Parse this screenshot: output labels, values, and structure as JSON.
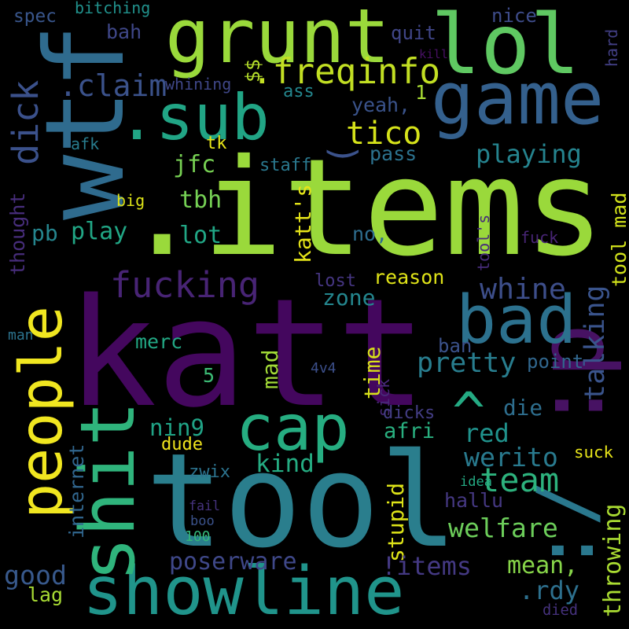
{
  "words": [
    {
      "text": ".items",
      "color": "#9ad93b"
    },
    {
      "text": "katt",
      "color": "#44075e"
    },
    {
      "text": "tool",
      "color": "#2a7e8d"
    },
    {
      "text": "showline",
      "color": "#20948b"
    },
    {
      "text": "grunt",
      "color": "#9ad93b"
    },
    {
      "text": "lol",
      "color": "#5fc862"
    },
    {
      "text": "wtf",
      "color": "#2f6b8e"
    },
    {
      "text": "game",
      "color": "#34608d"
    },
    {
      "text": ":/",
      "color": "#2a788e"
    },
    {
      "text": ":p",
      "color": "#471263"
    },
    {
      "text": "people",
      "color": "#f0e620"
    },
    {
      "text": "cap",
      "color": "#26ad81"
    },
    {
      "text": "bad",
      "color": "#2c718e"
    },
    {
      "text": "shit",
      "color": "#2fb47c"
    },
    {
      "text": ".sub",
      "color": "#21a585"
    },
    {
      "text": "(",
      "color": "#3b528b"
    },
    {
      "text": "^",
      "color": "#24aa83"
    },
    {
      "text": "dick",
      "color": "#3b518b"
    },
    {
      "text": ".freqinfo",
      "color": "#c2df23"
    },
    {
      "text": ".claim",
      "color": "#3b528b"
    },
    {
      "text": "fucking",
      "color": "#482475"
    },
    {
      "text": "tico",
      "color": "#d5e21a"
    },
    {
      "text": "playing",
      "color": "#25838e"
    },
    {
      "text": "team",
      "color": "#2db27d"
    },
    {
      "text": "welfare",
      "color": "#6ccd5a"
    },
    {
      "text": "tool mad",
      "color": "#d2e21b"
    },
    {
      "text": "katt's",
      "color": "#e5e419"
    },
    {
      "text": "talking",
      "color": "#3a548c"
    },
    {
      "text": "throwing",
      "color": "#aadc32"
    },
    {
      "text": "whine",
      "color": "#3d4e8a"
    },
    {
      "text": "pretty",
      "color": "#287d8e"
    },
    {
      "text": "nin9",
      "color": "#20a386"
    },
    {
      "text": "kind",
      "color": "#25ac82"
    },
    {
      "text": "werito",
      "color": "#297a8e"
    },
    {
      "text": "afri",
      "color": "#29af7f"
    },
    {
      "text": "red",
      "color": "#20928c"
    },
    {
      "text": "die",
      "color": "#2e6e8e"
    },
    {
      "text": "hallu",
      "color": "#453882"
    },
    {
      "text": "stupid",
      "color": "#dde318"
    },
    {
      "text": "internet",
      "color": "#31668e"
    },
    {
      "text": "mean,",
      "color": "#87d549"
    },
    {
      "text": "poserware",
      "color": "#3f4889"
    },
    {
      "text": "!items",
      "color": "#443983"
    },
    {
      "text": ".rdy",
      "color": "#2d708e"
    },
    {
      "text": "good",
      "color": "#38598c"
    },
    {
      "text": "lag",
      "color": "#a8db34"
    },
    {
      "text": "died",
      "color": "#46327e"
    },
    {
      "text": "zone",
      "color": "#24868e"
    },
    {
      "text": "reason",
      "color": "#dfe318"
    },
    {
      "text": "lost",
      "color": "#453581"
    },
    {
      "text": "time",
      "color": "#d8e219"
    },
    {
      "text": "mad",
      "color": "#a2da37"
    },
    {
      "text": "jfc",
      "color": "#77d153"
    },
    {
      "text": "tbh",
      "color": "#75d054"
    },
    {
      "text": "lot",
      "color": "#21a685"
    },
    {
      "text": "play",
      "color": "#21a685"
    },
    {
      "text": "pb",
      "color": "#25858e"
    },
    {
      "text": "no,",
      "color": "#2e6d8e"
    },
    {
      "text": "merc",
      "color": "#22a884"
    },
    {
      "text": "5",
      "color": "#3cbb75"
    },
    {
      "text": "ban",
      "color": "#3b528b"
    },
    {
      "text": "point",
      "color": "#31678e"
    },
    {
      "text": "sick",
      "color": "#482979"
    },
    {
      "text": "suck",
      "color": "#e7e419"
    },
    {
      "text": "dude",
      "color": "#f1e51d"
    },
    {
      "text": "zwix",
      "color": "#2c738e"
    },
    {
      "text": "dicks",
      "color": "#433d84"
    },
    {
      "text": "tk",
      "color": "#e7e419"
    },
    {
      "text": "afk",
      "color": "#287c8e"
    },
    {
      "text": "staff",
      "color": "#2a788e"
    },
    {
      "text": "pass",
      "color": "#2c728e"
    },
    {
      "text": "yeah,",
      "color": "#3a538b"
    },
    {
      "text": "ass",
      "color": "#24878e"
    },
    {
      "text": "quit",
      "color": "#404688"
    },
    {
      "text": "bah",
      "color": "#3f4788"
    },
    {
      "text": "spec",
      "color": "#39568c"
    },
    {
      "text": "nice",
      "color": "#3e4c8a"
    },
    {
      "text": "hard",
      "color": "#423f85"
    },
    {
      "text": "$$",
      "color": "#b5de2b"
    },
    {
      "text": "1",
      "color": "#a8db34"
    },
    {
      "text": "bitching",
      "color": "#21918c"
    },
    {
      "text": "whining",
      "color": "#3f4788"
    },
    {
      "text": "kill",
      "color": "#471063"
    },
    {
      "text": "thought",
      "color": "#472d7b"
    },
    {
      "text": "big",
      "color": "#dde318"
    },
    {
      "text": "tool's",
      "color": "#472c7a"
    },
    {
      "text": "fuck",
      "color": "#482576"
    },
    {
      "text": "man",
      "color": "#2c738e"
    },
    {
      "text": "4v4",
      "color": "#3c4f8a"
    },
    {
      "text": "idea",
      "color": "#24aa83"
    },
    {
      "text": "fail",
      "color": "#46337e"
    },
    {
      "text": "boo",
      "color": "#3b528b"
    },
    {
      "text": "100",
      "color": "#34b679"
    }
  ]
}
